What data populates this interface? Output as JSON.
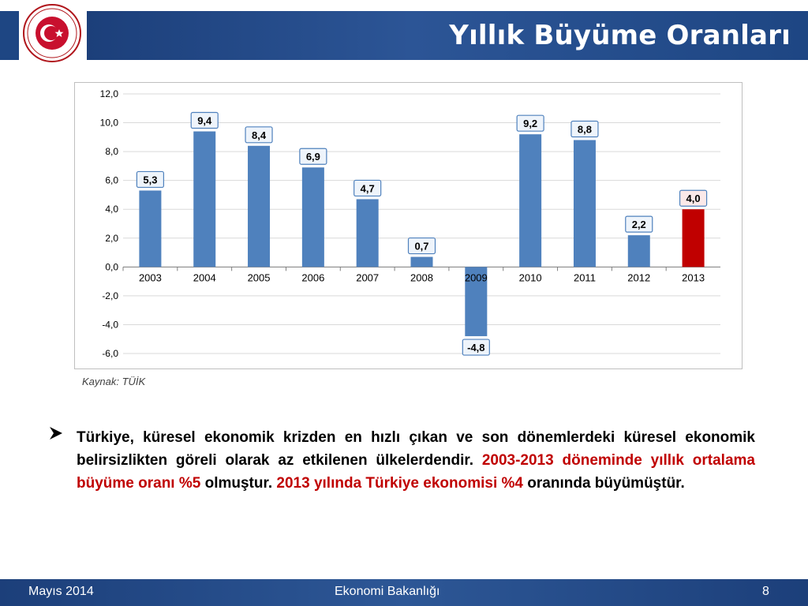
{
  "header": {
    "title": "Yıllık Büyüme Oranları"
  },
  "chart_data": {
    "type": "bar",
    "categories": [
      "2003",
      "2004",
      "2005",
      "2006",
      "2007",
      "2008",
      "2009",
      "2010",
      "2011",
      "2012",
      "2013"
    ],
    "values": [
      5.3,
      9.4,
      8.4,
      6.9,
      4.7,
      0.7,
      -4.8,
      9.2,
      8.8,
      2.2,
      4.0
    ],
    "labels": [
      "5,3",
      "9,4",
      "8,4",
      "6,9",
      "4,7",
      "0,7",
      "-4,8",
      "9,2",
      "8,8",
      "2,2",
      "4,0"
    ],
    "ylim": [
      -6,
      12
    ],
    "yticks": [
      "-6,0",
      "-4,0",
      "-2,0",
      "0,0",
      "2,0",
      "4,0",
      "6,0",
      "8,0",
      "10,0",
      "12,0"
    ],
    "ytick_values": [
      -6,
      -4,
      -2,
      0,
      2,
      4,
      6,
      8,
      10,
      12
    ],
    "grid": true,
    "colors": {
      "bar": "#4f81bd",
      "highlight": "#c00000",
      "highlight_category": "2013"
    }
  },
  "source": "Kaynak: TÜİK",
  "bullet": {
    "part1": "Türkiye, küresel ekonomik krizden en hızlı çıkan ve son dönemlerdeki küresel ekonomik belirsizlikten göreli olarak az etkilenen ülkelerdendir. ",
    "part2": "2003-2013 döneminde yıllık ortalama büyüme oranı %5",
    "part3": " olmuştur. ",
    "part4": "2013 yılında Türkiye ekonomisi %4",
    "part5": " oranında büyümüştür."
  },
  "footer": {
    "date": "Mayıs 2014",
    "org": "Ekonomi Bakanlığı",
    "page": "8"
  }
}
